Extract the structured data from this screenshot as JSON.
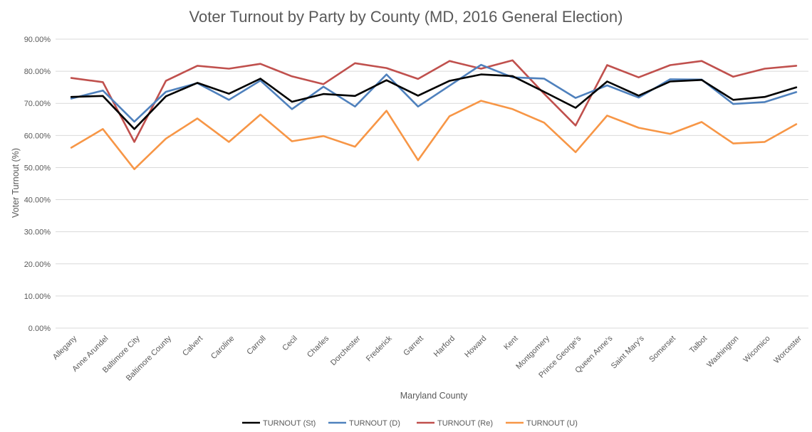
{
  "chart_data": {
    "type": "line",
    "title": "Voter Turnout by Party by County (MD, 2016 General Election)",
    "xlabel": "Maryland County",
    "ylabel": "Voter Turnout (%)",
    "ylim": [
      0,
      90
    ],
    "yticks": [
      "0.00%",
      "10.00%",
      "20.00%",
      "30.00%",
      "40.00%",
      "50.00%",
      "60.00%",
      "70.00%",
      "80.00%",
      "90.00%"
    ],
    "grid": true,
    "legend": "bottom",
    "categories": [
      "Allegany",
      "Anne Arundel",
      "Baltimore City",
      "Baltimore County",
      "Calvert",
      "Caroline",
      "Carroll",
      "Cecil",
      "Charles",
      "Dorchester",
      "Frederick",
      "Garrett",
      "Harford",
      "Howard",
      "Kent",
      "Montgomery",
      "Prince George's",
      "Queen Anne's",
      "Saint Mary's",
      "Somerset",
      "Talbot",
      "Washington",
      "Wicomico",
      "Worcester"
    ],
    "series": [
      {
        "name": "TURNOUT (St)",
        "color": "#000000",
        "values": [
          72.0,
          72.3,
          62.0,
          72.2,
          76.4,
          73.0,
          77.7,
          70.5,
          72.9,
          72.3,
          77.2,
          72.4,
          77.0,
          79.0,
          78.5,
          73.6,
          68.6,
          76.8,
          72.4,
          76.8,
          77.3,
          71.1,
          72.0,
          75.0
        ]
      },
      {
        "name": "TURNOUT (D)",
        "color": "#4f81bd",
        "values": [
          71.5,
          74.0,
          64.3,
          73.6,
          76.3,
          71.1,
          77.1,
          68.2,
          75.2,
          69.0,
          79.0,
          69.0,
          75.5,
          82.0,
          78.1,
          77.7,
          71.7,
          75.6,
          71.8,
          77.5,
          77.4,
          69.8,
          70.4,
          73.5
        ]
      },
      {
        "name": "TURNOUT (Re)",
        "color": "#c0504d",
        "values": [
          77.9,
          76.6,
          58.0,
          77.0,
          81.7,
          80.8,
          82.3,
          78.4,
          76.0,
          82.5,
          81.0,
          77.6,
          83.2,
          80.8,
          83.4,
          73.0,
          63.1,
          81.9,
          78.1,
          81.9,
          83.2,
          78.3,
          80.8,
          81.7
        ]
      },
      {
        "name": "TURNOUT (U)",
        "color": "#f79646",
        "values": [
          56.2,
          62.0,
          49.5,
          59.0,
          65.3,
          58.0,
          66.5,
          58.2,
          59.8,
          56.5,
          67.7,
          52.3,
          66.0,
          70.8,
          68.2,
          64.0,
          54.8,
          66.2,
          62.4,
          60.5,
          64.2,
          57.5,
          58.0,
          63.5
        ]
      }
    ]
  }
}
